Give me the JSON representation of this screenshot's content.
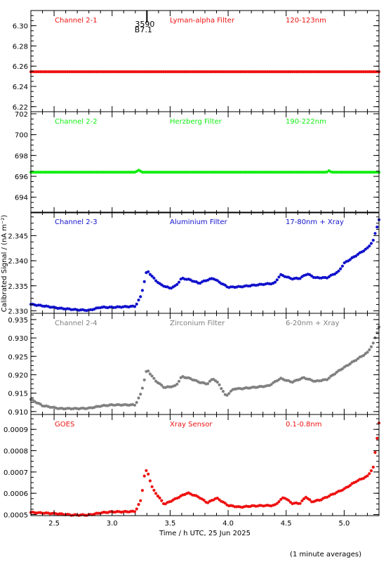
{
  "figure": {
    "ylabel": "Calibrated Signal / (nA m⁻²)",
    "xlabel": "Time / h UTC, 25 Jun 2025",
    "footnote": "(1 minute averages)",
    "marker_top_label": "3590",
    "marker_bottom_label": "B7.1"
  },
  "chart_data": [
    {
      "type": "scatter",
      "channel": "Channel 2-1",
      "filter": "Lyman-alpha Filter",
      "band": "120-123nm",
      "color": "#ee1111",
      "xlim": [
        2.3,
        5.3
      ],
      "ylim": [
        6.215,
        6.315
      ],
      "yticks": [
        6.22,
        6.24,
        6.26,
        6.28,
        6.3
      ],
      "ytick_labels": [
        "6.22",
        "6.24",
        "6.26",
        "6.28",
        "6.30"
      ],
      "x_knots": [
        2.3,
        5.3
      ],
      "y_knots": [
        6.2545,
        6.2545
      ]
    },
    {
      "type": "scatter",
      "channel": "Channel 2-2",
      "filter": "Herzberg Filter",
      "band": "190-222nm",
      "color": "#11ee11",
      "xlim": [
        2.3,
        5.3
      ],
      "ylim": [
        692.5,
        702.2
      ],
      "yticks": [
        694,
        696,
        698,
        700,
        702
      ],
      "ytick_labels": [
        "694",
        "696",
        "698",
        "700",
        "702"
      ],
      "x_knots": [
        2.3,
        3.2,
        3.23,
        3.26,
        4.85,
        4.87,
        4.89,
        5.3
      ],
      "y_knots": [
        696.4,
        696.4,
        696.6,
        696.4,
        696.4,
        696.55,
        696.4,
        696.4
      ]
    },
    {
      "type": "scatter",
      "channel": "Channel 2-3",
      "filter": "Aluminium Filter",
      "band": "17-80nm + Xray",
      "color": "#1111cc",
      "xlim": [
        2.3,
        5.3
      ],
      "ylim": [
        2.3295,
        2.3497
      ],
      "yticks": [
        2.33,
        2.335,
        2.34,
        2.345
      ],
      "ytick_labels": [
        "2.330",
        "2.335",
        "2.340",
        "2.345"
      ],
      "x_knots": [
        2.3,
        2.4,
        2.55,
        2.7,
        2.8,
        2.9,
        3.0,
        3.1,
        3.2,
        3.25,
        3.3,
        3.37,
        3.42,
        3.5,
        3.55,
        3.6,
        3.67,
        3.75,
        3.8,
        3.87,
        3.92,
        4.0,
        4.1,
        4.3,
        4.4,
        4.45,
        4.55,
        4.62,
        4.68,
        4.75,
        4.85,
        4.95,
        5.0,
        5.1,
        5.2,
        5.25,
        5.3
      ],
      "y_knots": [
        2.3313,
        2.331,
        2.3305,
        2.3302,
        2.3301,
        2.3307,
        2.3307,
        2.3308,
        2.3309,
        2.333,
        2.3381,
        2.3362,
        2.3352,
        2.3345,
        2.335,
        2.3365,
        2.3362,
        2.3355,
        2.336,
        2.3365,
        2.3358,
        2.3347,
        2.3348,
        2.3353,
        2.3355,
        2.3372,
        2.3364,
        2.3365,
        2.3374,
        2.3366,
        2.3366,
        2.3378,
        2.3395,
        2.341,
        2.3425,
        2.344,
        2.3482
      ]
    },
    {
      "type": "scatter",
      "channel": "Channel 2-4",
      "filter": "Zirconium Filter",
      "band": "6-20nm + Xray",
      "color": "#808080",
      "xlim": [
        2.3,
        5.3
      ],
      "ylim": [
        0.9092,
        0.9367
      ],
      "yticks": [
        0.91,
        0.915,
        0.92,
        0.925,
        0.93,
        0.935
      ],
      "ytick_labels": [
        "0.910",
        "0.915",
        "0.920",
        "0.925",
        "0.930",
        "0.935"
      ],
      "x_knots": [
        2.3,
        2.4,
        2.55,
        2.7,
        2.8,
        2.9,
        3.0,
        3.1,
        3.2,
        3.25,
        3.3,
        3.37,
        3.45,
        3.55,
        3.6,
        3.67,
        3.75,
        3.82,
        3.87,
        3.92,
        3.98,
        4.05,
        4.1,
        4.2,
        4.35,
        4.45,
        4.55,
        4.65,
        4.7,
        4.75,
        4.85,
        4.95,
        5.1,
        5.2,
        5.25,
        5.3
      ],
      "y_knots": [
        0.9133,
        0.9116,
        0.9108,
        0.9108,
        0.9109,
        0.9115,
        0.9118,
        0.9118,
        0.9118,
        0.915,
        0.9215,
        0.9185,
        0.9165,
        0.917,
        0.9195,
        0.919,
        0.918,
        0.9175,
        0.919,
        0.9175,
        0.9142,
        0.9162,
        0.9162,
        0.9165,
        0.917,
        0.919,
        0.918,
        0.9192,
        0.9187,
        0.9182,
        0.9187,
        0.921,
        0.924,
        0.926,
        0.9285,
        0.933
      ]
    },
    {
      "type": "scatter",
      "channel": "GOES",
      "filter": "Xray Sensor",
      "band": "0.1-0.8nm",
      "color": "#ee1111",
      "xlim": [
        2.3,
        5.3
      ],
      "ylim": [
        0.000495,
        0.00097
      ],
      "yticks": [
        0.0005,
        0.0006,
        0.0007,
        0.0008,
        0.0009
      ],
      "ytick_labels": [
        "0.0005",
        "0.0006",
        "0.0007",
        "0.0008",
        "0.0009"
      ],
      "x_knots": [
        2.3,
        2.5,
        2.65,
        2.8,
        2.9,
        3.0,
        3.1,
        3.2,
        3.25,
        3.28,
        3.3,
        3.35,
        3.45,
        3.55,
        3.65,
        3.75,
        3.82,
        3.9,
        4.0,
        4.1,
        4.2,
        4.3,
        4.4,
        4.48,
        4.55,
        4.62,
        4.67,
        4.72,
        4.8,
        4.9,
        5.0,
        5.1,
        5.2,
        5.25,
        5.3
      ],
      "y_knots": [
        0.00051,
        0.000505,
        0.000498,
        0.000498,
        0.000508,
        0.000513,
        0.000513,
        0.000515,
        0.00057,
        0.00069,
        0.00071,
        0.00062,
        0.000548,
        0.000575,
        0.000602,
        0.000582,
        0.000555,
        0.000578,
        0.000543,
        0.000535,
        0.00054,
        0.000542,
        0.000543,
        0.000582,
        0.000553,
        0.000553,
        0.000583,
        0.00056,
        0.00057,
        0.000595,
        0.00062,
        0.000655,
        0.00068,
        0.00072,
        0.00093
      ]
    }
  ],
  "x_axis": {
    "ticks": [
      2.5,
      3.0,
      3.5,
      4.0,
      4.5,
      5.0
    ],
    "tick_labels": [
      "2.5",
      "3.0",
      "3.5",
      "4.0",
      "4.5",
      "5.0"
    ],
    "marker_x": 3.3
  }
}
